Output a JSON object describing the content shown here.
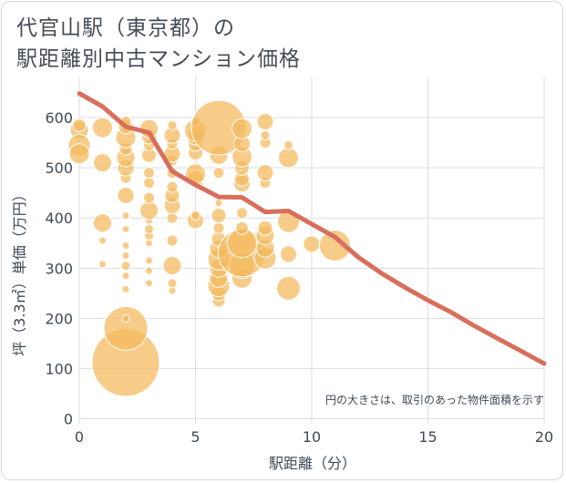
{
  "title": {
    "line1": "代官山駅（東京都）の",
    "line2": "駅距離別中古マンション価格"
  },
  "colors": {
    "bubble": "#f4b95c",
    "line": "#d86f5d",
    "grid": "#d8dee6",
    "text": "#3f4a55"
  },
  "chart_data": {
    "type": "scatter",
    "xlabel": "駅距離（分）",
    "ylabel": "坪（3.3㎡）単価（万円）",
    "xlim": [
      0,
      20
    ],
    "ylim": [
      -10,
      680
    ],
    "xticks": [
      0,
      5,
      10,
      15,
      20
    ],
    "yticks": [
      0,
      100,
      200,
      300,
      400,
      500,
      600
    ],
    "grid": true,
    "annotation": "円の大きさは、取引のあった物件面積を示す",
    "trend_line": {
      "x": [
        0,
        1,
        2,
        3,
        4,
        5,
        6,
        7,
        8,
        9,
        10,
        11,
        12,
        13,
        14,
        15,
        16,
        17,
        18,
        19,
        20
      ],
      "y": [
        648,
        622,
        582,
        570,
        493,
        466,
        442,
        441,
        412,
        414,
        388,
        362,
        322,
        290,
        262,
        236,
        212,
        185,
        160,
        135,
        110
      ]
    },
    "bubbles": [
      {
        "x": 0,
        "y": 575,
        "r": 10
      },
      {
        "x": 0,
        "y": 545,
        "r": 12
      },
      {
        "x": 0,
        "y": 528,
        "r": 11
      },
      {
        "x": 0,
        "y": 585,
        "r": 7
      },
      {
        "x": 1,
        "y": 580,
        "r": 11
      },
      {
        "x": 1,
        "y": 510,
        "r": 10
      },
      {
        "x": 1,
        "y": 390,
        "r": 10
      },
      {
        "x": 1,
        "y": 355,
        "r": 4
      },
      {
        "x": 1,
        "y": 308,
        "r": 4
      },
      {
        "x": 2,
        "y": 112,
        "r": 37
      },
      {
        "x": 2,
        "y": 180,
        "r": 24
      },
      {
        "x": 2,
        "y": 200,
        "r": 4
      },
      {
        "x": 2,
        "y": 258,
        "r": 4
      },
      {
        "x": 2,
        "y": 285,
        "r": 4
      },
      {
        "x": 2,
        "y": 305,
        "r": 5
      },
      {
        "x": 2,
        "y": 325,
        "r": 4
      },
      {
        "x": 2,
        "y": 345,
        "r": 4
      },
      {
        "x": 2,
        "y": 378,
        "r": 4
      },
      {
        "x": 2,
        "y": 405,
        "r": 4
      },
      {
        "x": 2,
        "y": 445,
        "r": 9
      },
      {
        "x": 2,
        "y": 480,
        "r": 6
      },
      {
        "x": 2,
        "y": 500,
        "r": 9
      },
      {
        "x": 2,
        "y": 520,
        "r": 10
      },
      {
        "x": 2,
        "y": 538,
        "r": 7
      },
      {
        "x": 2,
        "y": 560,
        "r": 11
      },
      {
        "x": 2,
        "y": 582,
        "r": 8
      },
      {
        "x": 2,
        "y": 592,
        "r": 6
      },
      {
        "x": 3,
        "y": 270,
        "r": 4
      },
      {
        "x": 3,
        "y": 295,
        "r": 4
      },
      {
        "x": 3,
        "y": 315,
        "r": 4
      },
      {
        "x": 3,
        "y": 350,
        "r": 4
      },
      {
        "x": 3,
        "y": 365,
        "r": 5
      },
      {
        "x": 3,
        "y": 378,
        "r": 5
      },
      {
        "x": 3,
        "y": 395,
        "r": 4
      },
      {
        "x": 3,
        "y": 415,
        "r": 10
      },
      {
        "x": 3,
        "y": 440,
        "r": 6
      },
      {
        "x": 3,
        "y": 470,
        "r": 6
      },
      {
        "x": 3,
        "y": 490,
        "r": 6
      },
      {
        "x": 3,
        "y": 525,
        "r": 8
      },
      {
        "x": 3,
        "y": 545,
        "r": 6
      },
      {
        "x": 3,
        "y": 562,
        "r": 8
      },
      {
        "x": 3,
        "y": 578,
        "r": 10
      },
      {
        "x": 4,
        "y": 255,
        "r": 4
      },
      {
        "x": 4,
        "y": 270,
        "r": 5
      },
      {
        "x": 4,
        "y": 305,
        "r": 10
      },
      {
        "x": 4,
        "y": 355,
        "r": 6
      },
      {
        "x": 4,
        "y": 400,
        "r": 6
      },
      {
        "x": 4,
        "y": 425,
        "r": 9
      },
      {
        "x": 4,
        "y": 445,
        "r": 8
      },
      {
        "x": 4,
        "y": 462,
        "r": 6
      },
      {
        "x": 4,
        "y": 490,
        "r": 6
      },
      {
        "x": 4,
        "y": 515,
        "r": 6
      },
      {
        "x": 4,
        "y": 528,
        "r": 9
      },
      {
        "x": 4,
        "y": 548,
        "r": 6
      },
      {
        "x": 4,
        "y": 565,
        "r": 9
      },
      {
        "x": 4,
        "y": 585,
        "r": 5
      },
      {
        "x": 5,
        "y": 395,
        "r": 9
      },
      {
        "x": 5,
        "y": 405,
        "r": 5
      },
      {
        "x": 5,
        "y": 478,
        "r": 9
      },
      {
        "x": 5,
        "y": 488,
        "r": 11
      },
      {
        "x": 5,
        "y": 530,
        "r": 8
      },
      {
        "x": 5,
        "y": 548,
        "r": 8
      },
      {
        "x": 5,
        "y": 562,
        "r": 9
      },
      {
        "x": 5,
        "y": 575,
        "r": 12
      },
      {
        "x": 5,
        "y": 592,
        "r": 5
      },
      {
        "x": 6,
        "y": 235,
        "r": 7
      },
      {
        "x": 6,
        "y": 250,
        "r": 8
      },
      {
        "x": 6,
        "y": 265,
        "r": 12
      },
      {
        "x": 6,
        "y": 280,
        "r": 10
      },
      {
        "x": 6,
        "y": 300,
        "r": 10
      },
      {
        "x": 6,
        "y": 318,
        "r": 12
      },
      {
        "x": 6,
        "y": 338,
        "r": 10
      },
      {
        "x": 6,
        "y": 358,
        "r": 8
      },
      {
        "x": 6,
        "y": 380,
        "r": 6
      },
      {
        "x": 6,
        "y": 405,
        "r": 8
      },
      {
        "x": 6,
        "y": 430,
        "r": 4
      },
      {
        "x": 6,
        "y": 490,
        "r": 6
      },
      {
        "x": 6,
        "y": 525,
        "r": 10
      },
      {
        "x": 6,
        "y": 580,
        "r": 30
      },
      {
        "x": 7,
        "y": 280,
        "r": 11
      },
      {
        "x": 7,
        "y": 305,
        "r": 14
      },
      {
        "x": 7,
        "y": 330,
        "r": 26
      },
      {
        "x": 7,
        "y": 350,
        "r": 16
      },
      {
        "x": 7,
        "y": 380,
        "r": 7
      },
      {
        "x": 7,
        "y": 410,
        "r": 6
      },
      {
        "x": 7,
        "y": 468,
        "r": 9
      },
      {
        "x": 7,
        "y": 478,
        "r": 8
      },
      {
        "x": 7,
        "y": 500,
        "r": 8
      },
      {
        "x": 7,
        "y": 522,
        "r": 11
      },
      {
        "x": 7,
        "y": 548,
        "r": 9
      },
      {
        "x": 7,
        "y": 578,
        "r": 11
      },
      {
        "x": 8,
        "y": 320,
        "r": 12
      },
      {
        "x": 8,
        "y": 340,
        "r": 10
      },
      {
        "x": 8,
        "y": 365,
        "r": 10
      },
      {
        "x": 8,
        "y": 380,
        "r": 8
      },
      {
        "x": 8,
        "y": 470,
        "r": 6
      },
      {
        "x": 8,
        "y": 490,
        "r": 9
      },
      {
        "x": 8,
        "y": 550,
        "r": 6
      },
      {
        "x": 8,
        "y": 565,
        "r": 5
      },
      {
        "x": 8,
        "y": 592,
        "r": 9
      },
      {
        "x": 9,
        "y": 260,
        "r": 13
      },
      {
        "x": 9,
        "y": 328,
        "r": 9
      },
      {
        "x": 9,
        "y": 393,
        "r": 12
      },
      {
        "x": 9,
        "y": 520,
        "r": 11
      },
      {
        "x": 9,
        "y": 545,
        "r": 5
      },
      {
        "x": 10,
        "y": 348,
        "r": 9
      },
      {
        "x": 11,
        "y": 345,
        "r": 17
      }
    ]
  }
}
